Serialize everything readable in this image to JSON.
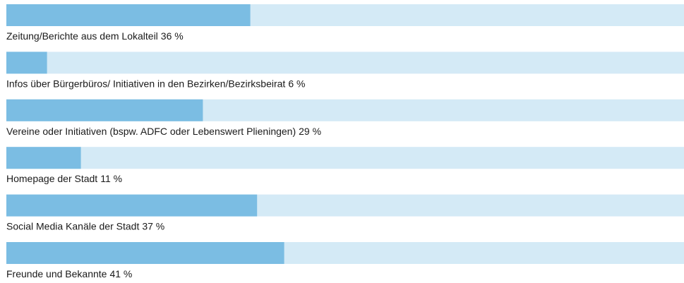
{
  "chart_data": {
    "type": "hbar",
    "categories": [
      "Zeitung/Berichte aus dem Lokalteil",
      "Infos über Bürgerbüros/ Initiativen in den Bezirken/Bezirksbeirat",
      "Vereine oder Initiativen (bspw. ADFC oder Lebenswert Plieningen)",
      "Homepage der Stadt",
      "Social Media Kanäle der Stadt",
      "Freunde und Bekannte"
    ],
    "values": [
      36,
      6,
      29,
      11,
      37,
      41
    ],
    "value_labels": [
      "36 %",
      "6 %",
      "29 %",
      "11 %",
      "37 %",
      "41 %"
    ],
    "color": "#7bbde3",
    "track_color": "#d4eaf6",
    "xlim": [
      0,
      100
    ]
  }
}
